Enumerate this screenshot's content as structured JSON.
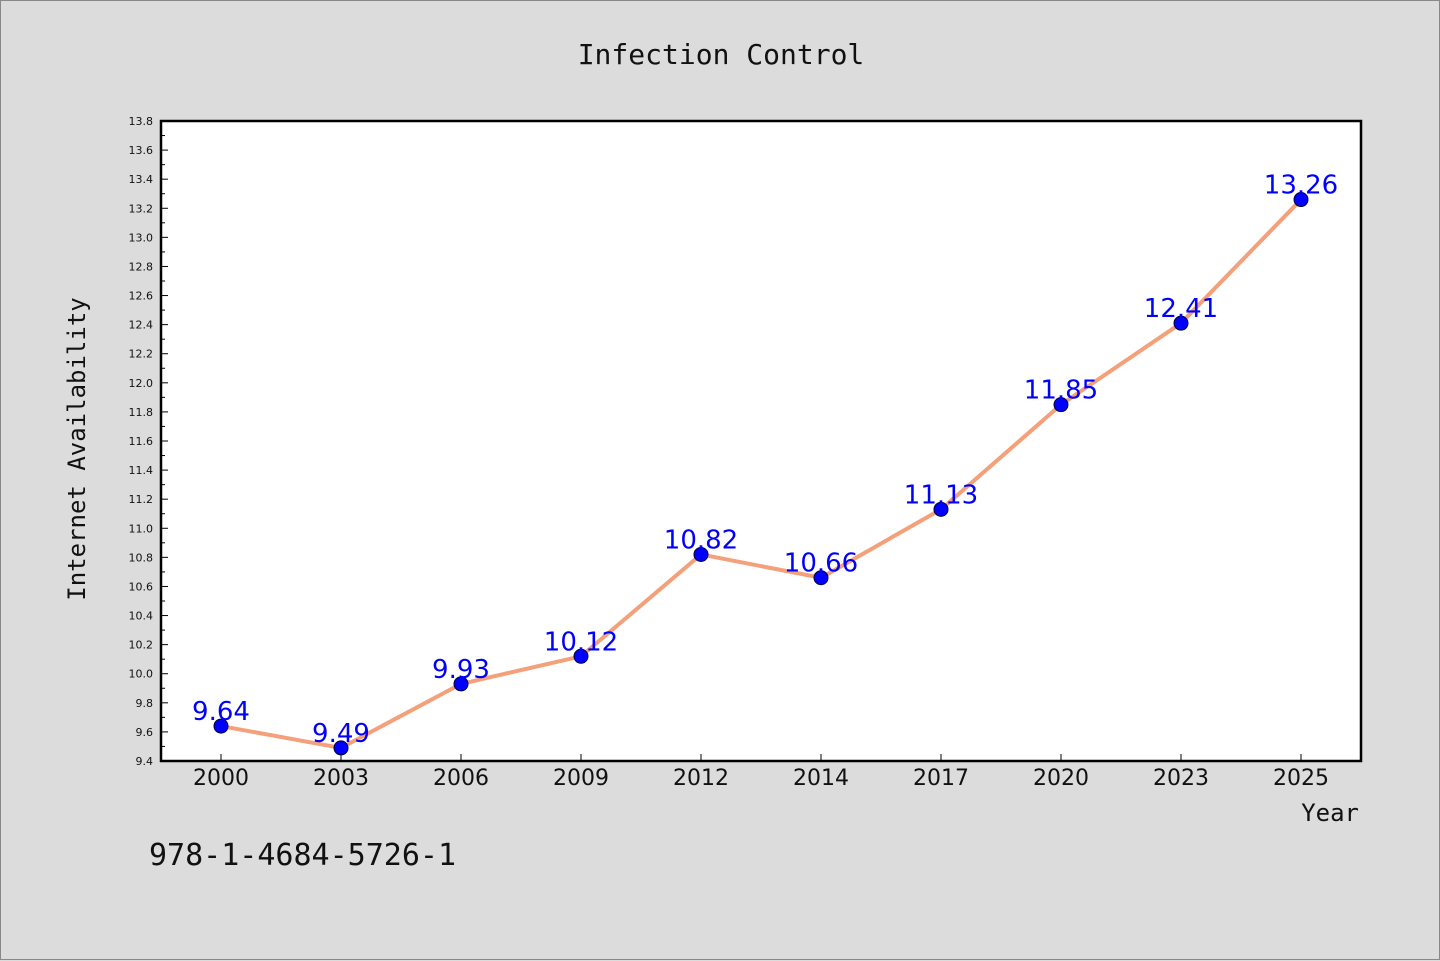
{
  "chart_data": {
    "type": "line",
    "title": "Infection Control",
    "xlabel": "Year",
    "ylabel": "Internet Availability",
    "categories": [
      "2000",
      "2003",
      "2006",
      "2009",
      "2012",
      "2014",
      "2017",
      "2020",
      "2023",
      "2025"
    ],
    "values": [
      9.64,
      9.49,
      9.93,
      10.12,
      10.82,
      10.66,
      11.13,
      11.85,
      12.41,
      13.26
    ],
    "data_labels": [
      "9.64",
      "9.49",
      "9.93",
      "10.12",
      "10.82",
      "10.66",
      "11.13",
      "11.85",
      "12.41",
      "13.26"
    ],
    "ylim": [
      9.4,
      13.8
    ],
    "yticks": [
      "9.4",
      "9.6",
      "9.8",
      "10.0",
      "10.2",
      "10.4",
      "10.6",
      "10.8",
      "11.0",
      "11.2",
      "11.4",
      "11.6",
      "11.8",
      "12.0",
      "12.2",
      "12.4",
      "12.6",
      "12.8",
      "13.0",
      "13.2",
      "13.4",
      "13.6",
      "13.8"
    ],
    "grid": false,
    "line_color": "#f4a07a",
    "marker_color": "#0000ff",
    "label_color": "#0000ff",
    "background_color": "#dcdcdc",
    "plot_background": "#ffffff"
  },
  "annotation": "978-1-4684-5726-1"
}
